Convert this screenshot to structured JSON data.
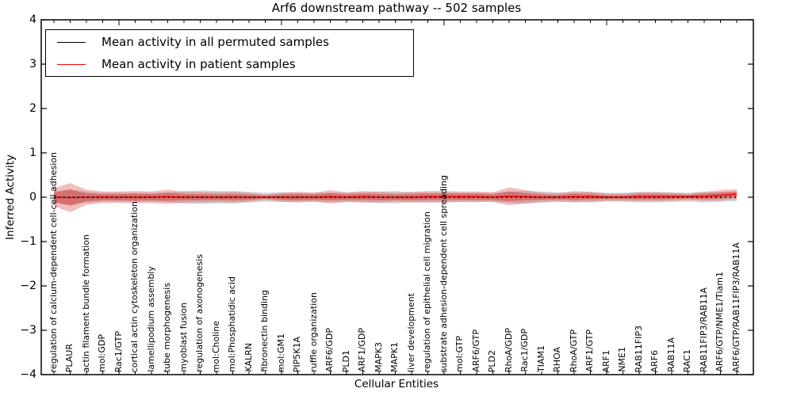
{
  "chart_data": {
    "type": "line",
    "title": "Arf6 downstream pathway -- 502 samples",
    "xlabel": "Cellular Entities",
    "ylabel": "Inferred Activity",
    "ylim": [
      -4,
      4
    ],
    "yticks": [
      4,
      3,
      2,
      1,
      0,
      -1,
      -2,
      -3,
      -4
    ],
    "ytick_labels": [
      "4",
      "3",
      "2",
      "1",
      "0",
      "−1",
      "−2",
      "−3",
      "−4"
    ],
    "grid": false,
    "legend_position": "upper left",
    "x_major_tick_indices": [
      4,
      14,
      24,
      34
    ],
    "categories": [
      "regulation of calcium-dependent cell-cell adhesion",
      "PLAUR",
      "actin filament bundle formation",
      "mol:GDP",
      "Rac1/GTP",
      "cortical actin cytoskeleton organization",
      "lamellipodium assembly",
      "tube morphogenesis",
      "myoblast fusion",
      "regulation of axonogenesis",
      "mol:Choline",
      "mol:Phosphatidic acid",
      "KALRN",
      "fibronectin binding",
      "mol:GM1",
      "PIP5K1A",
      "ruffle organization",
      "ARF6/GDP",
      "PLD1",
      "ARF1/GDP",
      "MAPK3",
      "MAPK1",
      "liver development",
      "regulation of epithelial cell migration",
      "substrate adhesion-dependent cell spreading",
      "mol:GTP",
      "ARF6/GTP",
      "PLD2",
      "RhoA/GDP",
      "Rac1/GDP",
      "TIAM1",
      "RHOA",
      "RhoA/GTP",
      "ARF1/GTP",
      "ARF1",
      "NME1",
      "RAB11FIP3",
      "ARF6",
      "RAB11A",
      "RAC1",
      "RAB11FIP3/RAB11A",
      "ARF6/GTP/NME1/Tiam1",
      "ARF6/GTP/RAB11FIP3/RAB11A"
    ],
    "series": [
      {
        "name": "Mean activity in all permuted samples",
        "color": "#000000",
        "style": "dashed",
        "values": [
          0,
          0,
          0,
          0,
          0,
          0,
          0,
          0,
          0,
          0,
          0,
          0,
          0,
          0,
          0,
          0,
          0,
          0,
          0,
          0,
          0,
          0,
          0,
          0,
          0,
          0,
          0,
          0,
          0,
          0,
          0,
          0,
          0,
          0,
          0,
          0,
          0,
          0,
          0,
          0,
          0,
          0,
          0
        ]
      },
      {
        "name": "Mean activity in patient samples",
        "color": "#ff0000",
        "style": "solid",
        "values": [
          0,
          -0.01,
          0,
          0,
          0,
          0,
          0,
          0.01,
          0,
          0,
          0,
          0,
          0,
          0,
          0,
          0,
          0,
          0.01,
          0,
          0.01,
          0,
          0,
          0,
          0.01,
          0.01,
          0.01,
          0.01,
          0,
          0.02,
          0.01,
          0,
          0,
          0.01,
          0.01,
          0,
          0,
          0.01,
          0.01,
          0.01,
          0.01,
          0.02,
          0.04,
          0.07
        ]
      }
    ],
    "bands": [
      {
        "name": "permuted-samples-spread",
        "color": "#999999",
        "opacity": 0.4,
        "half_widths": [
          0.12,
          0.18,
          0.13,
          0.1,
          0.1,
          0.1,
          0.1,
          0.11,
          0.14,
          0.15,
          0.14,
          0.14,
          0.12,
          0.1,
          0.11,
          0.1,
          0.1,
          0.11,
          0.1,
          0.11,
          0.13,
          0.14,
          0.11,
          0.11,
          0.11,
          0.1,
          0.1,
          0.1,
          0.13,
          0.14,
          0.13,
          0.11,
          0.1,
          0.12,
          0.1,
          0.1,
          0.12,
          0.12,
          0.11,
          0.1,
          0.12,
          0.1,
          0.09
        ]
      },
      {
        "name": "patient-samples-spread-outer",
        "color": "#dd5555",
        "opacity": 0.38,
        "half_widths": [
          0.2,
          0.33,
          0.17,
          0.13,
          0.13,
          0.14,
          0.13,
          0.16,
          0.12,
          0.12,
          0.11,
          0.12,
          0.1,
          0.06,
          0.1,
          0.12,
          0.1,
          0.15,
          0.11,
          0.13,
          0.12,
          0.1,
          0.12,
          0.13,
          0.13,
          0.12,
          0.12,
          0.11,
          0.2,
          0.15,
          0.1,
          0.09,
          0.13,
          0.11,
          0.08,
          0.08,
          0.1,
          0.1,
          0.09,
          0.07,
          0.1,
          0.12,
          0.11
        ]
      },
      {
        "name": "patient-samples-spread-inner",
        "color": "#cc3333",
        "opacity": 0.45,
        "half_widths": [
          0.11,
          0.18,
          0.09,
          0.07,
          0.07,
          0.08,
          0.07,
          0.09,
          0.07,
          0.07,
          0.06,
          0.07,
          0.06,
          0.03,
          0.06,
          0.07,
          0.06,
          0.08,
          0.06,
          0.07,
          0.07,
          0.06,
          0.07,
          0.07,
          0.07,
          0.07,
          0.07,
          0.06,
          0.11,
          0.08,
          0.06,
          0.05,
          0.07,
          0.06,
          0.04,
          0.04,
          0.06,
          0.06,
          0.05,
          0.04,
          0.06,
          0.07,
          0.06
        ]
      }
    ]
  }
}
